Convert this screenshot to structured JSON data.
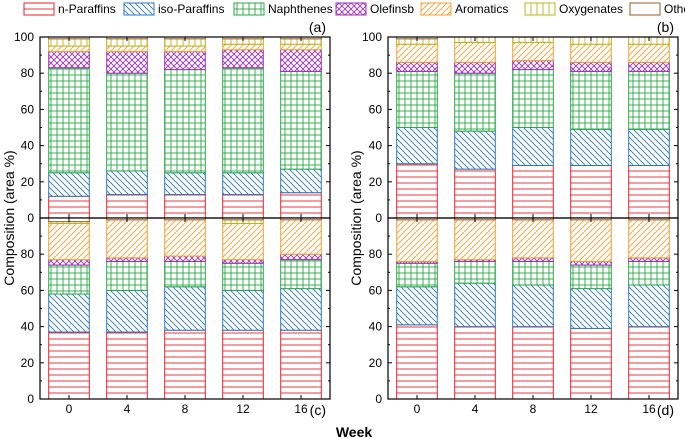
{
  "chart_data": {
    "type": "bar",
    "stacked": true,
    "xlabel": "Week",
    "ylabel": "Composition (area %)",
    "ylim": [
      0,
      100
    ],
    "yticks": [
      0,
      20,
      40,
      60,
      80,
      100
    ],
    "categories": [
      "0",
      "4",
      "8",
      "12",
      "16"
    ],
    "legend": [
      {
        "name": "n-Paraffins",
        "color": "#e8212c",
        "pattern": "hlines"
      },
      {
        "name": "iso-Paraffins",
        "color": "#2b79c2",
        "pattern": "diag-down"
      },
      {
        "name": "Naphthenes",
        "color": "#27a844",
        "pattern": "grid"
      },
      {
        "name": "Olefinsb",
        "color": "#9b30b5",
        "pattern": "crosshatch"
      },
      {
        "name": "Aromatics",
        "color": "#f5a033",
        "pattern": "diag-up"
      },
      {
        "name": "Oxygenates",
        "color": "#b8b41b",
        "pattern": "vlines"
      },
      {
        "name": "Others",
        "color": "#9c5a2c",
        "pattern": "blank"
      }
    ],
    "panels": [
      {
        "label": "(a)",
        "series": [
          {
            "name": "n-Paraffins",
            "values": [
              12,
              13,
              13,
              13,
              14
            ]
          },
          {
            "name": "iso-Paraffins",
            "values": [
              13,
              13,
              12,
              12,
              13
            ]
          },
          {
            "name": "Naphthenes",
            "values": [
              58,
              54,
              57,
              58,
              54
            ]
          },
          {
            "name": "Olefinsb",
            "values": [
              9,
              12,
              10,
              10,
              12
            ]
          },
          {
            "name": "Aromatics",
            "values": [
              3,
              3,
              3,
              3,
              3
            ]
          },
          {
            "name": "Oxygenates",
            "values": [
              4,
              4,
              4,
              3,
              3
            ]
          },
          {
            "name": "Others",
            "values": [
              1,
              1,
              1,
              1,
              1
            ]
          }
        ]
      },
      {
        "label": "(b)",
        "series": [
          {
            "name": "n-Paraffins",
            "values": [
              30,
              27,
              29,
              29,
              29
            ]
          },
          {
            "name": "iso-Paraffins",
            "values": [
              20,
              21,
              21,
              20,
              20
            ]
          },
          {
            "name": "Naphthenes",
            "values": [
              31,
              32,
              32,
              32,
              32
            ]
          },
          {
            "name": "Olefinsb",
            "values": [
              5,
              6,
              5,
              5,
              5
            ]
          },
          {
            "name": "Aromatics",
            "values": [
              10,
              11,
              10,
              10,
              10
            ]
          },
          {
            "name": "Oxygenates",
            "values": [
              3,
              3,
              3,
              4,
              4
            ]
          },
          {
            "name": "Others",
            "values": [
              1,
              0,
              0,
              0,
              0
            ]
          }
        ]
      },
      {
        "label": "(c)",
        "series": [
          {
            "name": "n-Paraffins",
            "values": [
              37,
              37,
              38,
              38,
              38
            ]
          },
          {
            "name": "iso-Paraffins",
            "values": [
              21,
              23,
              24,
              22,
              23
            ]
          },
          {
            "name": "Naphthenes",
            "values": [
              16,
              16,
              14,
              15,
              16
            ]
          },
          {
            "name": "Olefinsb",
            "values": [
              3,
              2,
              3,
              2,
              3
            ]
          },
          {
            "name": "Aromatics",
            "values": [
              20,
              21,
              20,
              20,
              19
            ]
          },
          {
            "name": "Oxygenates",
            "values": [
              1,
              0,
              0,
              2,
              0
            ]
          },
          {
            "name": "Others",
            "values": [
              2,
              1,
              1,
              1,
              1
            ]
          }
        ]
      },
      {
        "label": "(d)",
        "series": [
          {
            "name": "n-Paraffins",
            "values": [
              41,
              40,
              40,
              39,
              40
            ]
          },
          {
            "name": "iso-Paraffins",
            "values": [
              21,
              24,
              23,
              22,
              23
            ]
          },
          {
            "name": "Naphthenes",
            "values": [
              13,
              12,
              13,
              13,
              13
            ]
          },
          {
            "name": "Olefinsb",
            "values": [
              1,
              1,
              2,
              2,
              2
            ]
          },
          {
            "name": "Aromatics",
            "values": [
              23,
              22,
              21,
              23,
              21
            ]
          },
          {
            "name": "Oxygenates",
            "values": [
              0,
              0,
              0,
              0,
              0
            ]
          },
          {
            "name": "Others",
            "values": [
              1,
              1,
              1,
              1,
              1
            ]
          }
        ]
      }
    ]
  }
}
